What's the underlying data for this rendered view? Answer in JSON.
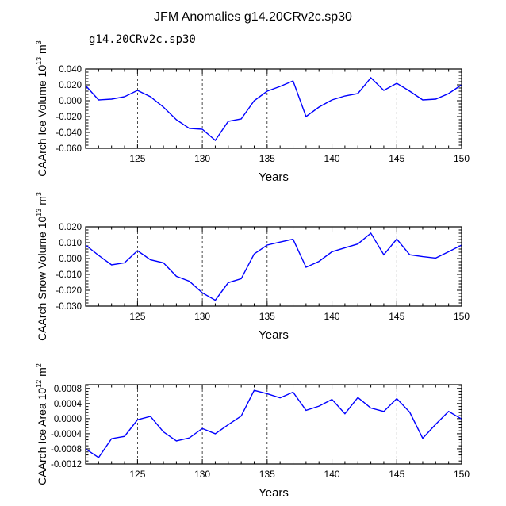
{
  "title": "JFM Anomalies g14.20CRv2c.sp30",
  "subtitle": "g14.20CRv2c.sp30",
  "colors": {
    "line": "#0000ff",
    "subtitle": "#3a55d8",
    "axis": "#000000"
  },
  "chart_data": [
    {
      "type": "line",
      "ylabel": "CAArch Ice Volume 10",
      "ylabel_exp": "13",
      "ylabel_unit": " m",
      "ylabel_unit_exp": "3",
      "xlabel": "Years",
      "xlim": [
        121,
        150
      ],
      "ylim": [
        -0.06,
        0.04
      ],
      "yticks": [
        0.04,
        0.02,
        0.0,
        -0.02,
        -0.04,
        -0.06
      ],
      "ytick_labels": [
        "0.040",
        "0.020",
        "0.000",
        "-0.020",
        "-0.040",
        "-0.060"
      ],
      "xticks": [
        125,
        130,
        135,
        140,
        145,
        150
      ],
      "xtick_labels": [
        "125",
        "130",
        "135",
        "140",
        "145",
        "150"
      ],
      "x": [
        121,
        122,
        123,
        124,
        125,
        126,
        127,
        128,
        129,
        130,
        131,
        132,
        133,
        134,
        135,
        136,
        137,
        138,
        139,
        140,
        141,
        142,
        143,
        144,
        145,
        146,
        147,
        148,
        149,
        150
      ],
      "values": [
        0.019,
        0.001,
        0.002,
        0.005,
        0.013,
        0.005,
        -0.008,
        -0.024,
        -0.035,
        -0.036,
        -0.05,
        -0.026,
        -0.023,
        0.0,
        0.012,
        0.018,
        0.025,
        -0.02,
        -0.008,
        0.001,
        0.006,
        0.009,
        0.029,
        0.013,
        0.022,
        0.012,
        0.001,
        0.002,
        0.009,
        0.02
      ]
    },
    {
      "type": "line",
      "ylabel": "CAArch Snow Volume 10",
      "ylabel_exp": "13",
      "ylabel_unit": " m",
      "ylabel_unit_exp": "3",
      "xlabel": "Years",
      "xlim": [
        121,
        150
      ],
      "ylim": [
        -0.03,
        0.02
      ],
      "yticks": [
        0.02,
        0.01,
        0.0,
        -0.01,
        -0.02,
        -0.03
      ],
      "ytick_labels": [
        "0.020",
        "0.010",
        "0.000",
        "-0.010",
        "-0.020",
        "-0.030"
      ],
      "xticks": [
        125,
        130,
        135,
        140,
        145,
        150
      ],
      "xtick_labels": [
        "125",
        "130",
        "135",
        "140",
        "145",
        "150"
      ],
      "x": [
        121,
        122,
        123,
        124,
        125,
        126,
        127,
        128,
        129,
        130,
        131,
        132,
        133,
        134,
        135,
        136,
        137,
        138,
        139,
        140,
        141,
        142,
        143,
        144,
        145,
        146,
        147,
        148,
        149,
        150
      ],
      "values": [
        0.0085,
        0.002,
        -0.004,
        -0.0027,
        0.005,
        -0.0008,
        -0.0027,
        -0.0112,
        -0.0143,
        -0.0216,
        -0.0263,
        -0.0152,
        -0.0127,
        0.0029,
        0.0085,
        0.0104,
        0.0122,
        -0.0055,
        -0.0018,
        0.0043,
        0.0068,
        0.0092,
        0.016,
        0.0024,
        0.0123,
        0.0024,
        0.0012,
        0.0003,
        0.0043,
        0.0085
      ]
    },
    {
      "type": "line",
      "ylabel": "CAArch Ice Area 10",
      "ylabel_exp": "12",
      "ylabel_unit": " m",
      "ylabel_unit_exp": "2",
      "xlabel": "Years",
      "xlim": [
        121,
        150
      ],
      "ylim": [
        -0.0012,
        0.0009
      ],
      "yticks": [
        0.0008,
        0.0004,
        0.0,
        -0.0004,
        -0.0008,
        -0.0012
      ],
      "ytick_labels": [
        "0.0008",
        "0.0004",
        "0.0000",
        "-0.0004",
        "-0.0008",
        "-0.0012"
      ],
      "xticks": [
        125,
        130,
        135,
        140,
        145,
        150
      ],
      "xtick_labels": [
        "125",
        "130",
        "135",
        "140",
        "145",
        "150"
      ],
      "x": [
        121,
        122,
        123,
        124,
        125,
        126,
        127,
        128,
        129,
        130,
        131,
        132,
        133,
        134,
        135,
        136,
        137,
        138,
        139,
        140,
        141,
        142,
        143,
        144,
        145,
        146,
        147,
        148,
        149,
        150
      ],
      "values": [
        -0.0008,
        -0.00103,
        -0.00053,
        -0.00047,
        -3e-05,
        6e-05,
        -0.00035,
        -0.00059,
        -0.00051,
        -0.00026,
        -0.0004,
        -0.00016,
        7e-05,
        0.00075,
        0.00066,
        0.00055,
        0.0007,
        0.00022,
        0.00033,
        0.00051,
        0.00013,
        0.00056,
        0.00028,
        0.00019,
        0.00053,
        0.00017,
        -0.00052,
        -0.00015,
        0.00019,
        -1e-05
      ]
    }
  ]
}
